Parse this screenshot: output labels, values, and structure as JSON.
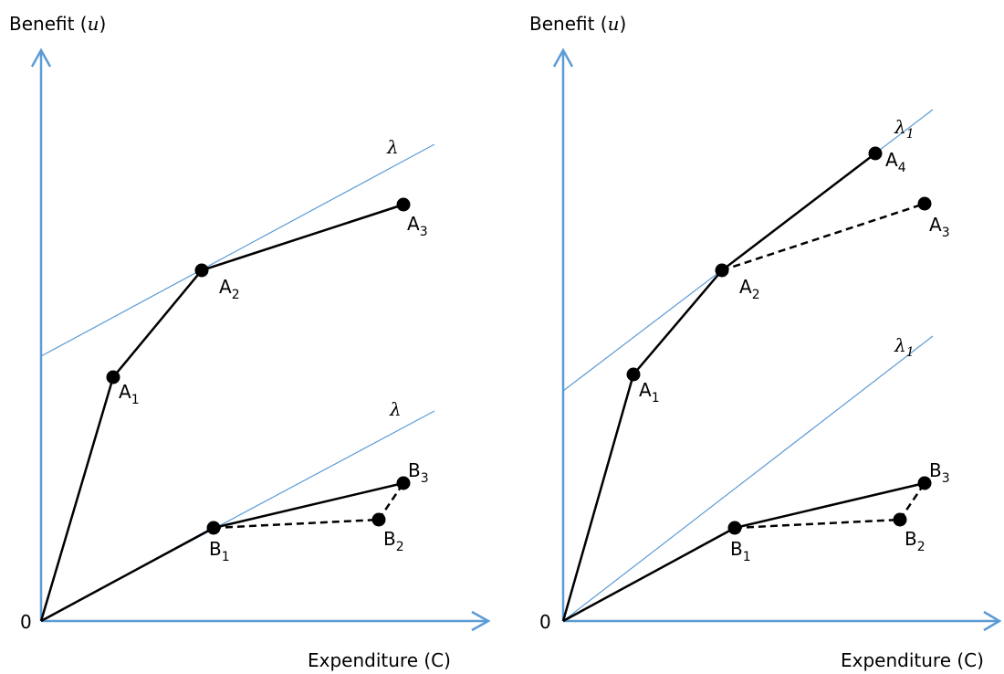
{
  "colors": {
    "axis": "#5b9bd5",
    "lambda_line": "#5b9bd5",
    "curve": "#000000",
    "point": "#000000"
  },
  "left_panel": {
    "y_axis_label_prefix": "Benefit (",
    "y_axis_label_var": "u",
    "y_axis_label_suffix": ")",
    "x_axis_label": "Expenditure (C)",
    "origin_label": "0",
    "lambda_upper": {
      "symbol": "λ",
      "sub": ""
    },
    "lambda_lower": {
      "symbol": "λ",
      "sub": ""
    },
    "points": {
      "A1": {
        "base": "A",
        "sub": "1"
      },
      "A2": {
        "base": "A",
        "sub": "2"
      },
      "A3": {
        "base": "A",
        "sub": "3"
      },
      "B1": {
        "base": "B",
        "sub": "1"
      },
      "B2": {
        "base": "B",
        "sub": "2"
      },
      "B3": {
        "base": "B",
        "sub": "3"
      }
    }
  },
  "right_panel": {
    "y_axis_label_prefix": "Benefit (",
    "y_axis_label_var": "u",
    "y_axis_label_suffix": ")",
    "x_axis_label": "Expenditure (C)",
    "origin_label": "0",
    "lambda_upper": {
      "symbol": "λ",
      "sub": "1"
    },
    "lambda_lower": {
      "symbol": "λ",
      "sub": "1"
    },
    "points": {
      "A1": {
        "base": "A",
        "sub": "1"
      },
      "A2": {
        "base": "A",
        "sub": "2"
      },
      "A3": {
        "base": "A",
        "sub": "3"
      },
      "A4": {
        "base": "A",
        "sub": "4"
      },
      "B1": {
        "base": "B",
        "sub": "1"
      },
      "B2": {
        "base": "B",
        "sub": "2"
      },
      "B3": {
        "base": "B",
        "sub": "3"
      }
    }
  }
}
